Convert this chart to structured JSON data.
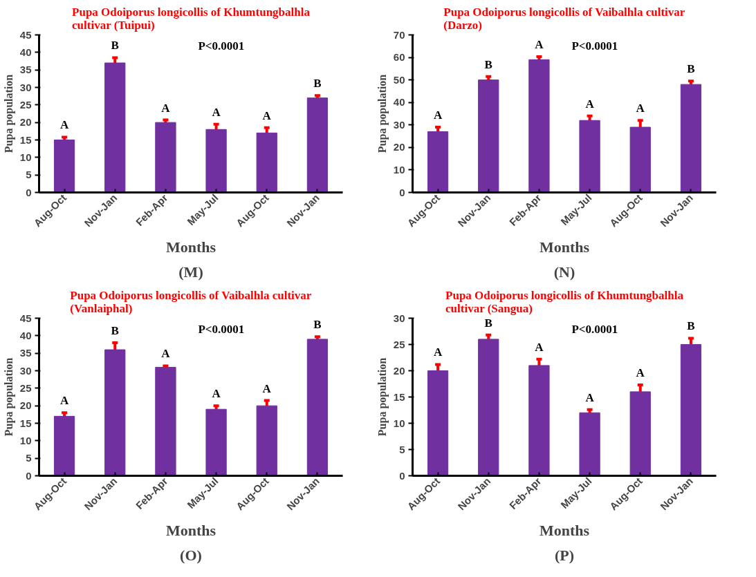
{
  "chart_data": [
    {
      "type": "bar",
      "title": "Pupa Odoiporus longicollis of Khumtungbalhla cultivar (Tuipui)",
      "xlabel": "Months",
      "ylabel": "Pupa population",
      "categories": [
        "Aug-Oct",
        "Nov-Jan",
        "Feb-Apr",
        "May-Jul",
        "Aug-Oct",
        "Nov-Jan"
      ],
      "values": [
        15,
        37,
        20,
        18,
        17,
        27
      ],
      "errors": [
        0.8,
        1.5,
        0.7,
        1.5,
        1.5,
        0.7
      ],
      "color": "#7030a0",
      "ylim": [
        0,
        45
      ],
      "yticks": [
        0,
        5,
        10,
        15,
        20,
        25,
        30,
        35,
        40,
        45
      ],
      "grid": false,
      "annotations": [
        "A",
        "B",
        "A",
        "A",
        "A",
        "B",
        "P<0.0001",
        "(M)"
      ]
    },
    {
      "type": "bar",
      "title": "Pupa Odoiporus longicollis of Vaibalhla cultivar (Darzo)",
      "xlabel": "Months",
      "ylabel": "Pupa population",
      "categories": [
        "Aug-Oct",
        "Nov-Jan",
        "Feb-Apr",
        "May-Jul",
        "Aug-Oct",
        "Nov-Jan"
      ],
      "values": [
        27,
        50,
        59,
        32,
        29,
        48
      ],
      "errors": [
        2,
        1.5,
        1.3,
        2,
        3,
        1.5
      ],
      "color": "#7030a0",
      "ylim": [
        0,
        70
      ],
      "yticks": [
        0,
        10,
        20,
        30,
        40,
        50,
        60,
        70
      ],
      "grid": false,
      "annotations": [
        "A",
        "B",
        "A",
        "A",
        "A",
        "B",
        "P<0.0001",
        "(N)"
      ]
    },
    {
      "type": "bar",
      "title": "Pupa Odoiporus longicollis of Vaibalhla cultivar (Vanlaiphal)",
      "xlabel": "Months",
      "ylabel": "Pupa population",
      "categories": [
        "Aug-Oct",
        "Nov-Jan",
        "Feb-Apr",
        "May-Jul",
        "Aug-Oct",
        "Nov-Jan"
      ],
      "values": [
        17,
        36,
        31,
        19,
        20,
        39
      ],
      "errors": [
        1,
        2,
        0.4,
        1,
        1.5,
        0.7
      ],
      "color": "#7030a0",
      "ylim": [
        0,
        45
      ],
      "yticks": [
        0,
        5,
        10,
        15,
        20,
        25,
        30,
        35,
        40,
        45
      ],
      "grid": false,
      "annotations": [
        "A",
        "B",
        "A",
        "A",
        "A",
        "B",
        "P<0.0001",
        "(O)"
      ]
    },
    {
      "type": "bar",
      "title": "Pupa Odoiporus longicollis of Khumtungbalhla cultivar (Sangua)",
      "xlabel": "Months",
      "ylabel": "Pupa population",
      "categories": [
        "Aug-Oct",
        "Nov-Jan",
        "Feb-Apr",
        "May-Jul",
        "Aug-Oct",
        "Nov-Jan"
      ],
      "values": [
        20,
        26,
        21,
        12,
        16,
        25
      ],
      "errors": [
        1.2,
        0.8,
        1.2,
        0.6,
        1.3,
        1.2
      ],
      "color": "#7030a0",
      "ylim": [
        0,
        30
      ],
      "yticks": [
        0,
        5,
        10,
        15,
        20,
        25,
        30
      ],
      "grid": false,
      "annotations": [
        "A",
        "B",
        "A",
        "A",
        "A",
        "B",
        "P<0.0001",
        "(P)"
      ]
    }
  ]
}
